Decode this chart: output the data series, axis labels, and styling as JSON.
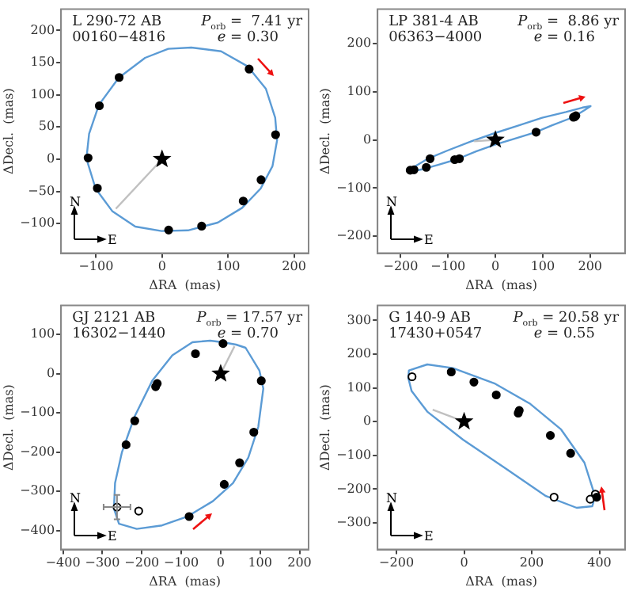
{
  "chart_data": [
    {
      "type": "scatter",
      "title": "L 290-72 AB",
      "subtitle": "00160−4816",
      "xlabel": "ΔRA  (mas)",
      "ylabel": "ΔDecl.  (mas)",
      "annotations": [
        "P$_{orb}$ =  7.41 yr",
        "e = 0.30",
        "N",
        "E"
      ],
      "xlim": [
        -153,
        222
      ],
      "ylim": [
        -146,
        233
      ],
      "xticks": [
        {
          "value": -100,
          "label": "−100"
        },
        0,
        100,
        200
      ],
      "yticks": [
        {
          "value": -100,
          "label": "−100"
        },
        {
          "value": -50,
          "label": "−50"
        },
        0,
        50,
        100,
        150,
        200
      ],
      "series": [
        {
          "type": "line",
          "color": "#c0c0c0",
          "marker": "none",
          "x": [
            0,
            -70
          ],
          "values": [
            0,
            -77
          ]
        },
        {
          "color": "#000000",
          "marker": "circle",
          "x": [
            132,
            172,
            150,
            123,
            60,
            10,
            -98,
            -112,
            -95,
            -65
          ],
          "values": [
            140,
            38,
            -32,
            -65,
            -104,
            -110,
            -45,
            2,
            83,
            127
          ]
        },
        {
          "color": "#000000",
          "marker": "star",
          "x": [
            0
          ],
          "values": [
            0
          ]
        }
      ]
    },
    {
      "type": "scatter",
      "title": "LP 381-4 AB",
      "subtitle": "06363−4000",
      "xlabel": "ΔRA  (mas)",
      "ylabel": "ΔDecl.  (mas)",
      "annotations": [
        "P$_{orb}$ =  8.86 yr",
        "e = 0.16",
        "N",
        "E"
      ],
      "xlim": [
        -249,
        274
      ],
      "ylim": [
        -235,
        271
      ],
      "xticks": [
        {
          "value": -200,
          "label": "−200"
        },
        {
          "value": -100,
          "label": "−100"
        },
        0,
        100,
        200
      ],
      "yticks": [
        {
          "value": -200,
          "label": "−200"
        },
        {
          "value": -100,
          "label": "−100"
        },
        0,
        100,
        200
      ],
      "series": [
        {
          "type": "line",
          "color": "#c0c0c0",
          "marker": "none",
          "x": [
            0,
            -45
          ],
          "values": [
            0,
            -3
          ]
        },
        {
          "color": "#000000",
          "marker": "circle",
          "x": [
            -180,
            -172,
            -138,
            -146,
            -86,
            -76,
            86,
            165,
            170,
            168
          ],
          "values": [
            -63,
            -62,
            -39,
            -57,
            -41,
            -39,
            16,
            47,
            50,
            48
          ]
        },
        {
          "color": "#000000",
          "marker": "star",
          "x": [
            0
          ],
          "values": [
            0
          ]
        }
      ]
    },
    {
      "type": "scatter",
      "title": "GJ 2121 AB",
      "subtitle": "16302−1440",
      "xlabel": "ΔRA  (mas)",
      "ylabel": "ΔDecl.  (mas)",
      "annotations": [
        "P$_{orb}$ = 17.57 yr",
        "e = 0.70",
        "N",
        "E"
      ],
      "xlim": [
        -405,
        223
      ],
      "ylim": [
        -448,
        174
      ],
      "xticks": [
        {
          "value": -400,
          "label": "−400"
        },
        {
          "value": -300,
          "label": "−300"
        },
        {
          "value": -200,
          "label": "−200"
        },
        {
          "value": -100,
          "label": "−100"
        },
        0,
        100,
        200
      ],
      "yticks": [
        {
          "value": -400,
          "label": "−400"
        },
        {
          "value": -300,
          "label": "−300"
        },
        {
          "value": -200,
          "label": "−200"
        },
        {
          "value": -100,
          "label": "−100"
        },
        0,
        100
      ],
      "series": [
        {
          "type": "line",
          "color": "#c0c0c0",
          "marker": "none",
          "x": [
            0,
            35
          ],
          "values": [
            0,
            70
          ]
        },
        {
          "color": "#000000",
          "marker": "circle",
          "x": [
            6,
            -64,
            -161,
            -165,
            -218,
            -240,
            -80,
            9,
            48,
            84,
            103
          ],
          "values": [
            77,
            51,
            -25,
            -33,
            -120,
            -181,
            -364,
            -282,
            -227,
            -149,
            -18
          ]
        },
        {
          "color": "#ffffff",
          "marker": "circle",
          "x": [
            -263,
            -208
          ],
          "values": [
            -340,
            -350
          ],
          "errors": [
            31,
            null
          ],
          "xerrors": [
            34,
            null
          ]
        },
        {
          "color": "#000000",
          "marker": "star",
          "x": [
            0
          ],
          "values": [
            0
          ]
        }
      ]
    },
    {
      "type": "scatter",
      "title": "G 140-9 AB",
      "subtitle": "17430+0547",
      "xlabel": "ΔRA  (mas)",
      "ylabel": "ΔDecl.  (mas)",
      "annotations": [
        "P$_{orb}$ = 20.58 yr",
        "e = 0.55",
        "N",
        "E"
      ],
      "xlim": [
        -256,
        476
      ],
      "ylim": [
        -379,
        344
      ],
      "xticks": [
        {
          "value": -200,
          "label": "−200"
        },
        0,
        200,
        400
      ],
      "yticks": [
        {
          "value": -300,
          "label": "−300"
        },
        {
          "value": -200,
          "label": "−200"
        },
        {
          "value": -100,
          "label": "−100"
        },
        0,
        100,
        200,
        300
      ],
      "series": [
        {
          "type": "line",
          "color": "#c0c0c0",
          "marker": "none",
          "x": [
            0,
            -93
          ],
          "values": [
            0,
            35
          ]
        },
        {
          "color": "#000000",
          "marker": "circle",
          "x": [
            -38,
            29,
            95,
            163,
            160,
            255,
            315,
            392
          ],
          "values": [
            147,
            117,
            79,
            33,
            25,
            -41,
            -94,
            -224
          ]
        },
        {
          "color": "#ffffff",
          "marker": "circle",
          "x": [
            -154,
            266,
            373,
            388
          ],
          "values": [
            133,
            -224,
            -230,
            -215
          ]
        },
        {
          "color": "#000000",
          "marker": "star",
          "x": [
            0
          ],
          "values": [
            0
          ]
        }
      ]
    }
  ]
}
